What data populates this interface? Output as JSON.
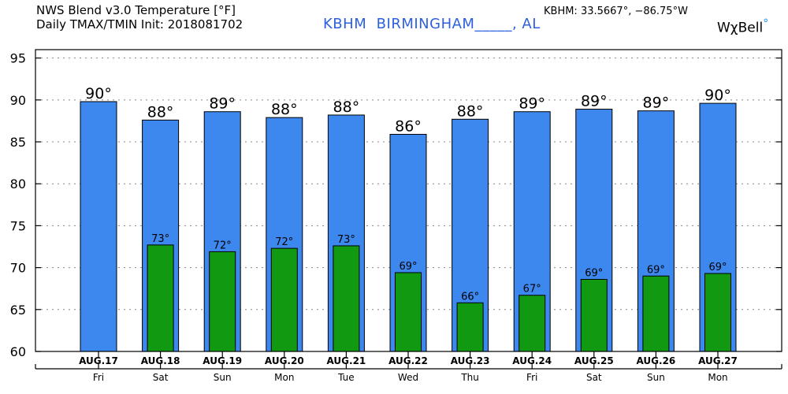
{
  "header": {
    "title_line1": "NWS Blend v3.0 Temperature [°F]",
    "title_line2": "Daily TMAX/TMIN Init: 2018081702",
    "station": "KBHM  BIRMINGHAM_____, AL",
    "coords": "KBHM: 33.5667°, −86.75°W",
    "brand": "WχBell",
    "brand_mark": "°"
  },
  "chart_data": {
    "type": "bar",
    "title": "",
    "xlabel": "",
    "ylabel": "",
    "ylim": [
      60,
      96
    ],
    "yticks": [
      60,
      65,
      70,
      75,
      80,
      85,
      90,
      95
    ],
    "grid": true,
    "categories": [
      "AUG.17",
      "AUG.18",
      "AUG.19",
      "AUG.20",
      "AUG.21",
      "AUG.22",
      "AUG.23",
      "AUG.24",
      "AUG.25",
      "AUG.26",
      "AUG.27"
    ],
    "days": [
      "Fri",
      "Sat",
      "Sun",
      "Mon",
      "Tue",
      "Wed",
      "Thu",
      "Fri",
      "Sat",
      "Sun",
      "Mon"
    ],
    "series": [
      {
        "key": "tmax",
        "color": "#3d88ee",
        "values": [
          89.8,
          87.6,
          88.6,
          87.9,
          88.2,
          85.9,
          87.7,
          88.6,
          88.9,
          88.7,
          89.6
        ],
        "labels": [
          "90°",
          "88°",
          "89°",
          "88°",
          "88°",
          "86°",
          "88°",
          "89°",
          "89°",
          "89°",
          "90°"
        ]
      },
      {
        "key": "tmin",
        "color": "#119911",
        "values": [
          null,
          72.7,
          71.9,
          72.3,
          72.6,
          69.4,
          65.8,
          66.7,
          68.6,
          69.0,
          69.3
        ],
        "labels": [
          "",
          "73°",
          "72°",
          "72°",
          "73°",
          "69°",
          "66°",
          "67°",
          "69°",
          "69°",
          "69°"
        ]
      }
    ]
  }
}
